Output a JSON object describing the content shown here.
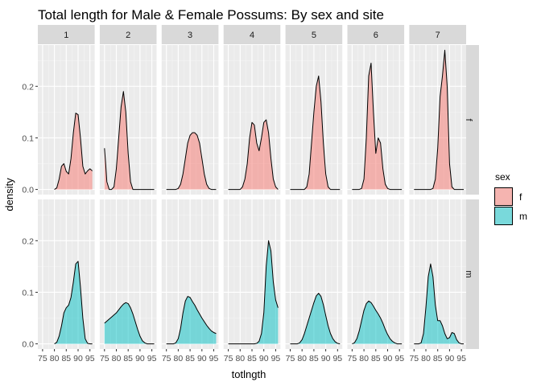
{
  "chart_data": {
    "type": "area",
    "title": "Total length for Male & Female Possums: By sex and site",
    "xlabel": "totlngth",
    "ylabel": "density",
    "xlim": [
      73,
      97
    ],
    "ylim": [
      -0.01,
      0.28
    ],
    "xticks": [
      75,
      80,
      85,
      90,
      95
    ],
    "yticks": [
      0.0,
      0.1,
      0.2
    ],
    "ytick_labels": [
      "0.0",
      "0.1",
      "0.2"
    ],
    "columns": [
      "1",
      "2",
      "3",
      "4",
      "5",
      "6",
      "7"
    ],
    "rows": [
      "f",
      "m"
    ],
    "legend": {
      "title": "sex",
      "position": "right",
      "entries": [
        {
          "label": "f",
          "color": "#F8766D"
        },
        {
          "label": "m",
          "color": "#00BFC4"
        }
      ]
    },
    "panels": [
      {
        "col": "1",
        "row": "f",
        "x": [
          80,
          81,
          82,
          83,
          84,
          85,
          86,
          87,
          88,
          89,
          90,
          91,
          92,
          93,
          94,
          95,
          96
        ],
        "y": [
          0.0,
          0.003,
          0.02,
          0.045,
          0.05,
          0.035,
          0.03,
          0.06,
          0.11,
          0.148,
          0.145,
          0.1,
          0.045,
          0.03,
          0.036,
          0.04,
          0.036
        ]
      },
      {
        "col": "2",
        "row": "f",
        "x": [
          75,
          75.5,
          76,
          77,
          78,
          79,
          80,
          81,
          82,
          83,
          84,
          85,
          86,
          87,
          88,
          89,
          90,
          91,
          92,
          93,
          94,
          95,
          96
        ],
        "y": [
          0.08,
          0.05,
          0.015,
          0.0,
          0.0,
          0.005,
          0.04,
          0.1,
          0.16,
          0.19,
          0.15,
          0.07,
          0.015,
          0.0,
          0.0,
          0.0,
          0.0,
          0.0,
          0.0,
          0.0,
          0.0,
          0.0,
          0.0
        ]
      },
      {
        "col": "3",
        "row": "f",
        "x": [
          75,
          76,
          77,
          78,
          79,
          80,
          81,
          82,
          83,
          84,
          85,
          86,
          87,
          88,
          89,
          90,
          91,
          92,
          93,
          94,
          95,
          96
        ],
        "y": [
          0.0,
          0.0,
          0.0,
          0.0,
          0.0,
          0.002,
          0.01,
          0.03,
          0.06,
          0.09,
          0.105,
          0.11,
          0.11,
          0.105,
          0.09,
          0.06,
          0.03,
          0.01,
          0.002,
          0.0,
          0.0,
          0.0
        ]
      },
      {
        "col": "4",
        "row": "f",
        "x": [
          75,
          76,
          77,
          78,
          79,
          80,
          81,
          82,
          83,
          84,
          85,
          86,
          87,
          88,
          89,
          90,
          91,
          92,
          93,
          94,
          95,
          96
        ],
        "y": [
          0.0,
          0.0,
          0.0,
          0.0,
          0.0,
          0.0,
          0.005,
          0.02,
          0.05,
          0.1,
          0.13,
          0.125,
          0.09,
          0.075,
          0.1,
          0.13,
          0.135,
          0.11,
          0.06,
          0.02,
          0.005,
          0.0
        ]
      },
      {
        "col": "5",
        "row": "f",
        "x": [
          75,
          76,
          77,
          78,
          79,
          80,
          81,
          82,
          83,
          84,
          85,
          86,
          87,
          88,
          89,
          90,
          91,
          92,
          93,
          94,
          95,
          96
        ],
        "y": [
          0.0,
          0.0,
          0.0,
          0.0,
          0.0,
          0.0,
          0.0,
          0.005,
          0.03,
          0.09,
          0.15,
          0.2,
          0.22,
          0.17,
          0.09,
          0.03,
          0.005,
          0.0,
          0.0,
          0.0,
          0.0,
          0.0
        ]
      },
      {
        "col": "6",
        "row": "f",
        "x": [
          75,
          76,
          77,
          78,
          79,
          80,
          81,
          82,
          83,
          84,
          85,
          86,
          87,
          88,
          89,
          90,
          91,
          92,
          93,
          94,
          95,
          96
        ],
        "y": [
          0.0,
          0.0,
          0.0,
          0.0,
          0.002,
          0.02,
          0.1,
          0.22,
          0.245,
          0.15,
          0.07,
          0.1,
          0.09,
          0.04,
          0.01,
          0.002,
          0.0,
          0.0,
          0.0,
          0.0,
          0.0,
          0.0
        ]
      },
      {
        "col": "7",
        "row": "f",
        "x": [
          75,
          76,
          77,
          78,
          79,
          80,
          81,
          82,
          83,
          84,
          85,
          86,
          87,
          88,
          89,
          90,
          91,
          92,
          93,
          94,
          95,
          96
        ],
        "y": [
          0.0,
          0.0,
          0.0,
          0.0,
          0.0,
          0.0,
          0.0,
          0.0,
          0.002,
          0.02,
          0.08,
          0.18,
          0.22,
          0.27,
          0.2,
          0.05,
          0.005,
          0.0,
          0.0,
          0.0,
          0.0,
          0.0
        ]
      },
      {
        "col": "1",
        "row": "m",
        "x": [
          80,
          81,
          82,
          83,
          84,
          85,
          86,
          87,
          88,
          89,
          90,
          91,
          92,
          93,
          94,
          95,
          96
        ],
        "y": [
          0.0,
          0.003,
          0.015,
          0.035,
          0.06,
          0.07,
          0.075,
          0.09,
          0.12,
          0.155,
          0.16,
          0.11,
          0.05,
          0.01,
          0.001,
          0.0,
          0.0
        ]
      },
      {
        "col": "2",
        "row": "m",
        "x": [
          75,
          76,
          77,
          78,
          79,
          80,
          81,
          82,
          83,
          84,
          85,
          86,
          87,
          88,
          89,
          90,
          91,
          92,
          93,
          94,
          95,
          96
        ],
        "y": [
          0.04,
          0.044,
          0.048,
          0.052,
          0.056,
          0.06,
          0.066,
          0.072,
          0.077,
          0.08,
          0.078,
          0.07,
          0.058,
          0.043,
          0.028,
          0.015,
          0.006,
          0.002,
          0.0,
          0.0,
          0.0,
          0.0
        ]
      },
      {
        "col": "3",
        "row": "m",
        "x": [
          75,
          76,
          77,
          78,
          79,
          80,
          81,
          82,
          83,
          84,
          85,
          86,
          87,
          88,
          89,
          90,
          91,
          92,
          93,
          94,
          95,
          96
        ],
        "y": [
          0.0,
          0.0,
          0.0,
          0.0,
          0.002,
          0.01,
          0.03,
          0.06,
          0.083,
          0.092,
          0.09,
          0.082,
          0.075,
          0.066,
          0.058,
          0.05,
          0.043,
          0.036,
          0.03,
          0.025,
          0.022,
          0.02
        ]
      },
      {
        "col": "4",
        "row": "m",
        "x": [
          75,
          76,
          77,
          78,
          79,
          80,
          81,
          82,
          83,
          84,
          85,
          86,
          87,
          88,
          89,
          90,
          91,
          92,
          93,
          94,
          95,
          96
        ],
        "y": [
          0.0,
          0.0,
          0.0,
          0.0,
          0.0,
          0.0,
          0.0,
          0.0,
          0.0,
          0.0,
          0.0,
          0.0,
          0.001,
          0.005,
          0.02,
          0.06,
          0.15,
          0.2,
          0.18,
          0.12,
          0.085,
          0.07
        ]
      },
      {
        "col": "5",
        "row": "m",
        "x": [
          75,
          76,
          77,
          78,
          79,
          80,
          81,
          82,
          83,
          84,
          85,
          86,
          87,
          88,
          89,
          90,
          91,
          92,
          93,
          94,
          95,
          96
        ],
        "y": [
          0.0,
          0.0,
          0.0,
          0.0,
          0.002,
          0.008,
          0.02,
          0.035,
          0.05,
          0.065,
          0.08,
          0.093,
          0.098,
          0.092,
          0.076,
          0.055,
          0.035,
          0.02,
          0.01,
          0.004,
          0.001,
          0.0
        ]
      },
      {
        "col": "6",
        "row": "m",
        "x": [
          75,
          76,
          77,
          78,
          79,
          80,
          81,
          82,
          83,
          84,
          85,
          86,
          87,
          88,
          89,
          90,
          91,
          92,
          93,
          94,
          95,
          96
        ],
        "y": [
          0.0,
          0.002,
          0.01,
          0.025,
          0.045,
          0.065,
          0.078,
          0.083,
          0.08,
          0.073,
          0.065,
          0.058,
          0.05,
          0.04,
          0.028,
          0.018,
          0.01,
          0.005,
          0.002,
          0.0,
          0.0,
          0.0
        ]
      },
      {
        "col": "7",
        "row": "m",
        "x": [
          75,
          76,
          77,
          78,
          79,
          80,
          81,
          82,
          83,
          84,
          85,
          86,
          87,
          88,
          89,
          90,
          91,
          92,
          93,
          94,
          95,
          96
        ],
        "y": [
          0.0,
          0.0,
          0.0,
          0.002,
          0.02,
          0.07,
          0.13,
          0.155,
          0.13,
          0.075,
          0.045,
          0.045,
          0.035,
          0.02,
          0.01,
          0.012,
          0.022,
          0.02,
          0.008,
          0.002,
          0.0,
          0.0
        ]
      }
    ]
  }
}
